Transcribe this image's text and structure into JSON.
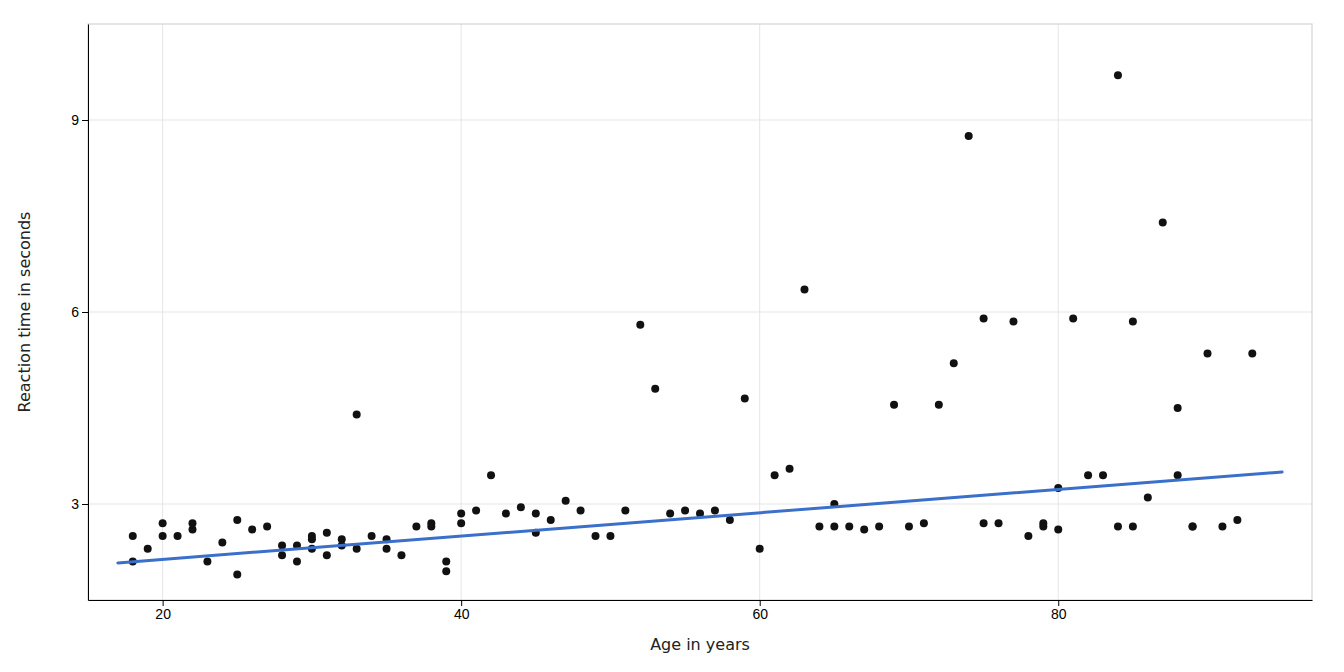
{
  "chart_data": {
    "type": "scatter",
    "xlabel": "Age in years",
    "ylabel": "Reaction time in seconds",
    "xlim": [
      15,
      97
    ],
    "ylim": [
      1.5,
      10.5
    ],
    "xticks": [
      20,
      40,
      60,
      80
    ],
    "yticks": [
      3,
      6,
      9
    ],
    "grid": true,
    "series": [
      {
        "type": "scatter",
        "color": "#111111",
        "x": [
          18,
          19,
          20,
          21,
          22,
          23,
          24,
          25,
          26,
          27,
          28,
          28,
          29,
          29,
          30,
          30,
          31,
          31,
          32,
          32,
          33,
          34,
          35,
          35,
          36,
          37,
          38,
          39,
          39,
          40,
          40,
          41,
          42,
          43,
          44,
          45,
          46,
          47,
          48,
          49,
          50,
          51,
          52,
          53,
          54,
          55,
          56,
          57,
          58,
          59,
          60,
          61,
          62,
          63,
          64,
          65,
          65,
          66,
          67,
          68,
          69,
          70,
          71,
          72,
          73,
          74,
          75,
          75,
          76,
          77,
          78,
          79,
          79,
          80,
          80,
          81,
          82,
          83,
          84,
          84,
          85,
          85,
          86,
          87,
          88,
          88,
          89,
          89,
          90,
          91,
          92,
          93,
          18,
          20,
          22,
          25,
          30,
          33,
          38,
          45
        ],
        "values": [
          2.1,
          2.3,
          2.5,
          2.5,
          2.6,
          2.1,
          2.4,
          1.9,
          2.6,
          2.65,
          2.2,
          2.35,
          2.1,
          2.35,
          2.3,
          2.45,
          2.2,
          2.55,
          2.35,
          2.45,
          4.4,
          2.5,
          2.45,
          2.3,
          2.2,
          2.65,
          2.7,
          1.95,
          2.1,
          2.7,
          2.85,
          2.9,
          3.45,
          2.85,
          2.95,
          2.55,
          2.75,
          3.05,
          2.9,
          2.5,
          2.5,
          2.9,
          5.8,
          4.8,
          2.85,
          2.9,
          2.85,
          2.9,
          2.75,
          4.65,
          2.3,
          3.45,
          3.55,
          6.35,
          2.65,
          3.0,
          2.65,
          2.65,
          2.6,
          2.65,
          4.55,
          2.65,
          2.7,
          4.55,
          5.2,
          8.75,
          2.7,
          5.9,
          2.7,
          5.85,
          2.5,
          2.65,
          2.7,
          2.6,
          3.25,
          5.9,
          3.45,
          3.45,
          9.7,
          2.65,
          2.65,
          5.85,
          3.1,
          7.4,
          4.5,
          3.45,
          2.65,
          2.65,
          5.35,
          2.65,
          2.75,
          5.35,
          2.5,
          2.7,
          2.7,
          2.75,
          2.5,
          2.3,
          2.65,
          2.85
        ]
      },
      {
        "type": "line",
        "color": "#3a6fca",
        "x": [
          17,
          95
        ],
        "values": [
          2.08,
          3.5
        ]
      }
    ]
  }
}
